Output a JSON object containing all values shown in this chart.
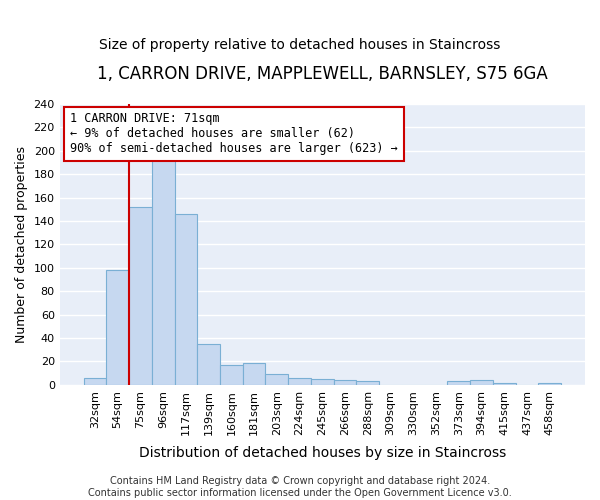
{
  "title": "1, CARRON DRIVE, MAPPLEWELL, BARNSLEY, S75 6GA",
  "subtitle": "Size of property relative to detached houses in Staincross",
  "xlabel_bottom": "Distribution of detached houses by size in Staincross",
  "ylabel": "Number of detached properties",
  "categories": [
    "32sqm",
    "54sqm",
    "75sqm",
    "96sqm",
    "117sqm",
    "139sqm",
    "160sqm",
    "181sqm",
    "203sqm",
    "224sqm",
    "245sqm",
    "266sqm",
    "288sqm",
    "309sqm",
    "330sqm",
    "352sqm",
    "373sqm",
    "394sqm",
    "415sqm",
    "437sqm",
    "458sqm"
  ],
  "values": [
    6,
    98,
    152,
    199,
    146,
    35,
    17,
    19,
    9,
    6,
    5,
    4,
    3,
    0,
    0,
    0,
    3,
    4,
    2,
    0,
    2
  ],
  "bar_color": "#c6d8f0",
  "bar_edge_color": "#7aafd4",
  "vline_color": "#cc0000",
  "vline_x_index": 2,
  "annotation_text": "1 CARRON DRIVE: 71sqm\n← 9% of detached houses are smaller (62)\n90% of semi-detached houses are larger (623) →",
  "annotation_box_facecolor": "#ffffff",
  "annotation_box_edgecolor": "#cc0000",
  "ylim": [
    0,
    240
  ],
  "yticks": [
    0,
    20,
    40,
    60,
    80,
    100,
    120,
    140,
    160,
    180,
    200,
    220,
    240
  ],
  "fig_facecolor": "#ffffff",
  "axes_facecolor": "#e8eef8",
  "grid_color": "#ffffff",
  "footer": "Contains HM Land Registry data © Crown copyright and database right 2024.\nContains public sector information licensed under the Open Government Licence v3.0.",
  "title_fontsize": 12,
  "subtitle_fontsize": 10,
  "tick_fontsize": 8,
  "ylabel_fontsize": 9,
  "xlabel_fontsize": 10,
  "footer_fontsize": 7,
  "annotation_fontsize": 8.5
}
